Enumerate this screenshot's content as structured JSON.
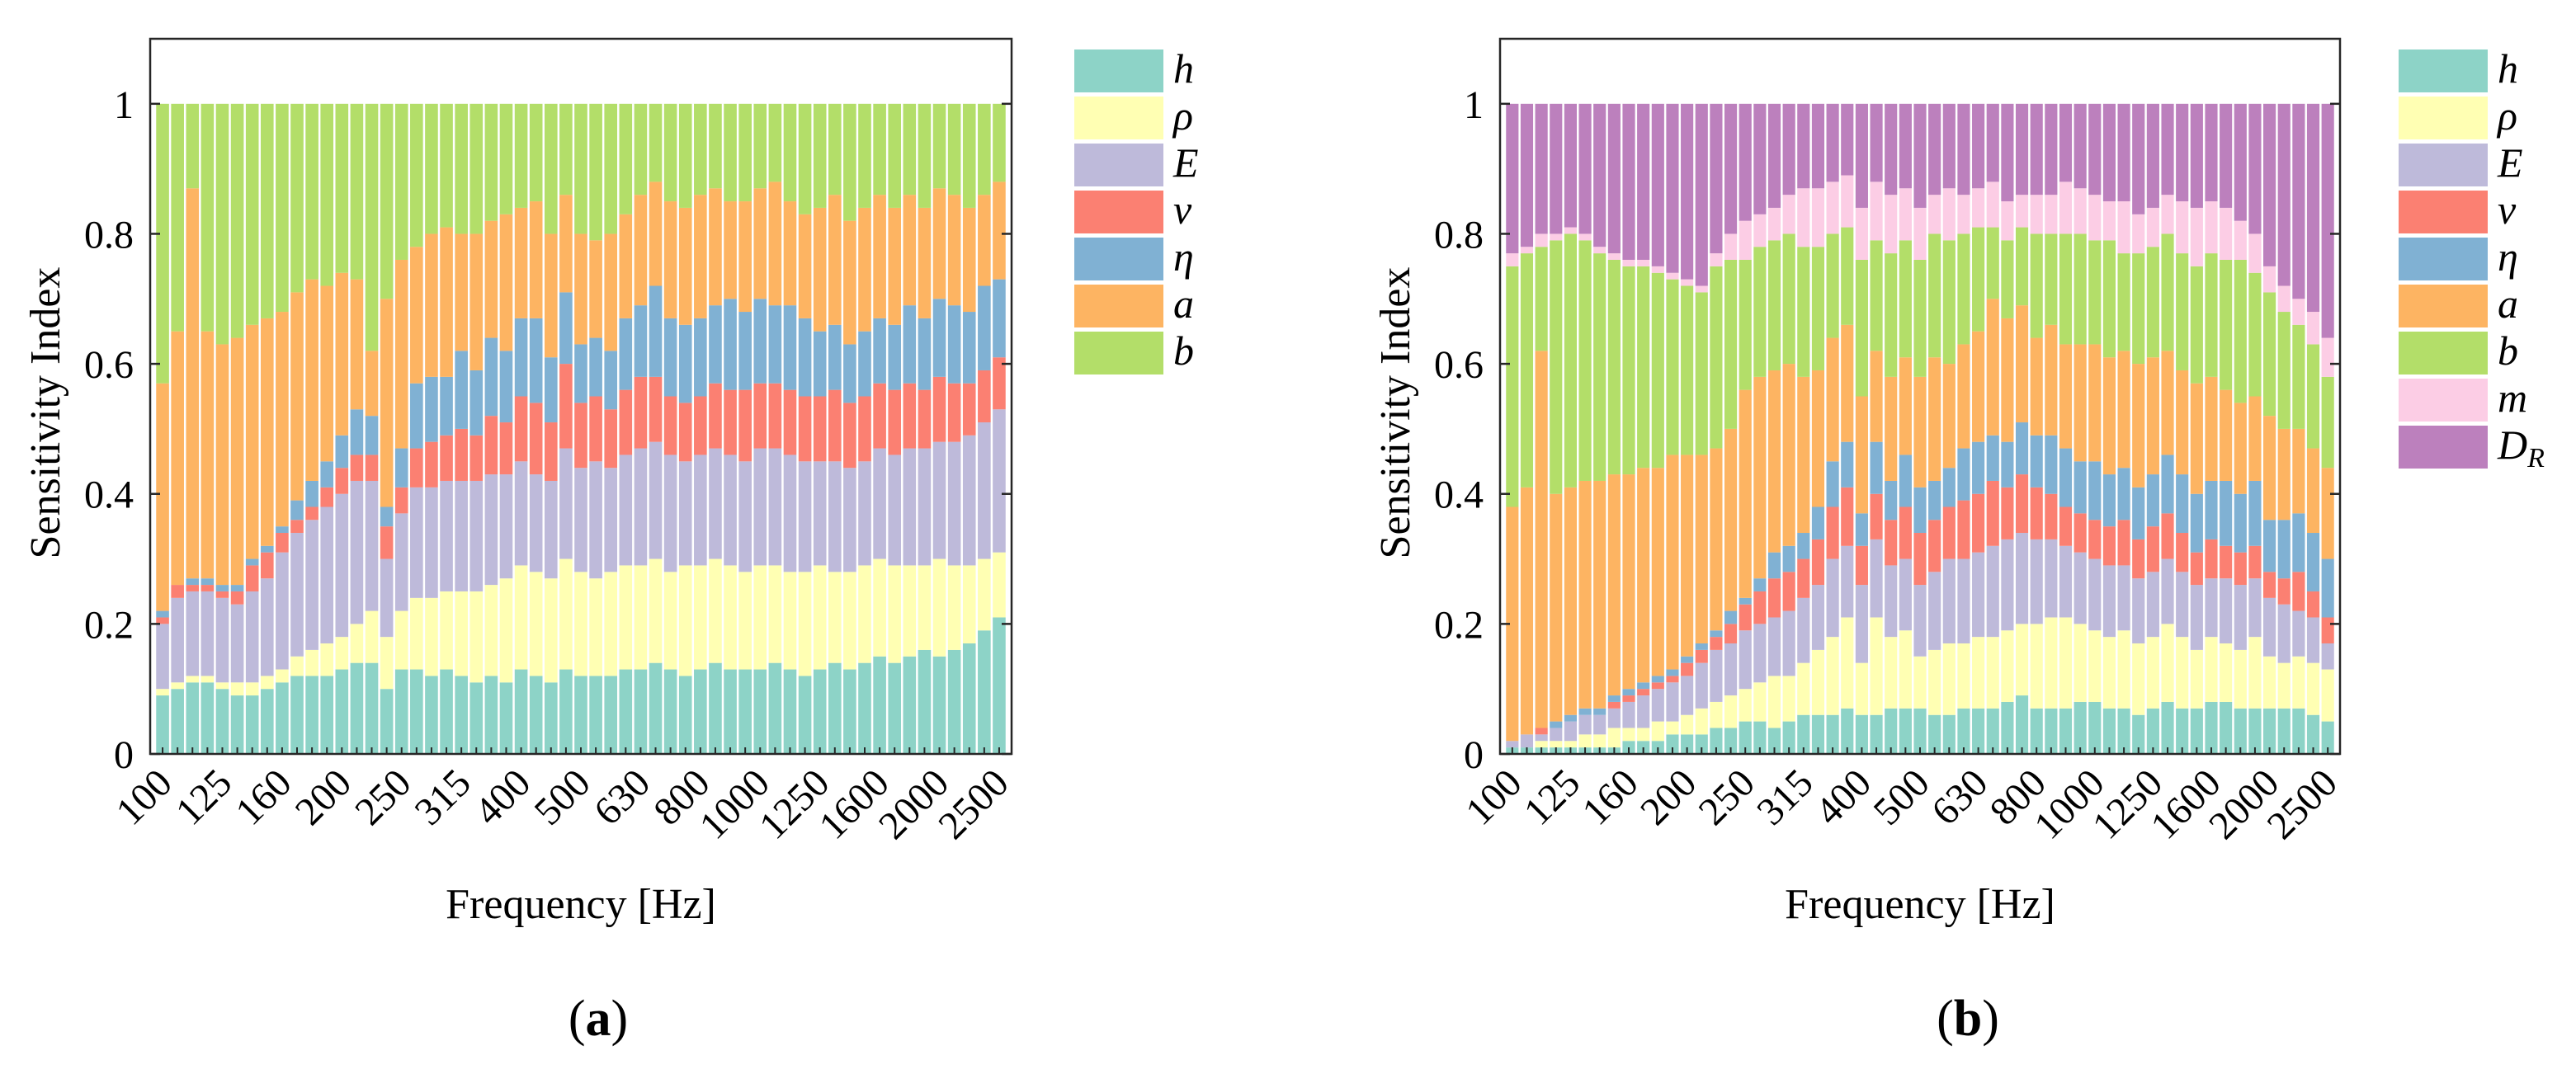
{
  "figure": {
    "captions": [
      "(a)",
      "(b)"
    ]
  },
  "chart_data": [
    {
      "id": "a",
      "type": "bar",
      "stacked": true,
      "caption_letter": "a",
      "xlabel": "Frequency [Hz]",
      "ylabel": "Sensitivity Index",
      "ylim": [
        0,
        1.1
      ],
      "yticks": [
        0,
        0.2,
        0.4,
        0.6,
        0.8,
        1
      ],
      "xtick_labels": [
        "100",
        "125",
        "160",
        "200",
        "250",
        "315",
        "400",
        "500",
        "630",
        "800",
        "1000",
        "1250",
        "1600",
        "2000",
        "2500"
      ],
      "xtick_every": 4,
      "n_bars": 57,
      "legend": [
        "h",
        "ρ",
        "E",
        "ν",
        "η",
        "a",
        "b"
      ],
      "colors": {
        "h": "#8dd3c7",
        "ρ": "#ffffb3",
        "E": "#bebada",
        "ν": "#fb8072",
        "η": "#80b1d3",
        "a": "#fdb462",
        "b": "#b3de69"
      },
      "boundaries": {
        "h": [
          0.09,
          0.1,
          0.11,
          0.11,
          0.1,
          0.09,
          0.09,
          0.1,
          0.11,
          0.12,
          0.12,
          0.12,
          0.13,
          0.14,
          0.14,
          0.1,
          0.13,
          0.13,
          0.12,
          0.13,
          0.12,
          0.11,
          0.12,
          0.11,
          0.13,
          0.12,
          0.11,
          0.13,
          0.12,
          0.12,
          0.12,
          0.13,
          0.13,
          0.14,
          0.13,
          0.12,
          0.13,
          0.14,
          0.13,
          0.13,
          0.13,
          0.14,
          0.13,
          0.12,
          0.13,
          0.14,
          0.13,
          0.14,
          0.15,
          0.14,
          0.15,
          0.16,
          0.15,
          0.16,
          0.17,
          0.19,
          0.21
        ],
        "ρ": [
          0.1,
          0.11,
          0.12,
          0.12,
          0.11,
          0.11,
          0.11,
          0.12,
          0.13,
          0.15,
          0.16,
          0.17,
          0.18,
          0.2,
          0.22,
          0.18,
          0.22,
          0.24,
          0.24,
          0.25,
          0.25,
          0.25,
          0.26,
          0.27,
          0.29,
          0.28,
          0.27,
          0.3,
          0.28,
          0.27,
          0.28,
          0.29,
          0.29,
          0.3,
          0.28,
          0.29,
          0.29,
          0.3,
          0.29,
          0.28,
          0.29,
          0.29,
          0.28,
          0.28,
          0.29,
          0.28,
          0.28,
          0.29,
          0.3,
          0.29,
          0.29,
          0.29,
          0.3,
          0.29,
          0.29,
          0.3,
          0.31
        ],
        "E": [
          0.2,
          0.24,
          0.25,
          0.25,
          0.24,
          0.23,
          0.25,
          0.27,
          0.31,
          0.34,
          0.36,
          0.38,
          0.4,
          0.42,
          0.42,
          0.3,
          0.37,
          0.41,
          0.41,
          0.42,
          0.42,
          0.42,
          0.43,
          0.43,
          0.45,
          0.43,
          0.42,
          0.47,
          0.44,
          0.45,
          0.44,
          0.46,
          0.47,
          0.48,
          0.46,
          0.45,
          0.46,
          0.47,
          0.46,
          0.45,
          0.47,
          0.47,
          0.46,
          0.45,
          0.45,
          0.45,
          0.44,
          0.45,
          0.47,
          0.46,
          0.47,
          0.47,
          0.48,
          0.48,
          0.49,
          0.51,
          0.53
        ],
        "ν": [
          0.21,
          0.26,
          0.26,
          0.26,
          0.25,
          0.25,
          0.29,
          0.31,
          0.34,
          0.36,
          0.38,
          0.41,
          0.44,
          0.46,
          0.46,
          0.35,
          0.41,
          0.47,
          0.48,
          0.49,
          0.5,
          0.49,
          0.52,
          0.51,
          0.55,
          0.54,
          0.51,
          0.6,
          0.54,
          0.55,
          0.53,
          0.56,
          0.58,
          0.58,
          0.55,
          0.54,
          0.55,
          0.57,
          0.56,
          0.56,
          0.57,
          0.57,
          0.56,
          0.55,
          0.55,
          0.56,
          0.54,
          0.55,
          0.57,
          0.56,
          0.57,
          0.56,
          0.58,
          0.57,
          0.57,
          0.59,
          0.61
        ],
        "η": [
          0.22,
          0.26,
          0.27,
          0.27,
          0.26,
          0.26,
          0.3,
          0.32,
          0.35,
          0.39,
          0.42,
          0.45,
          0.49,
          0.53,
          0.52,
          0.38,
          0.47,
          0.57,
          0.58,
          0.58,
          0.62,
          0.59,
          0.64,
          0.62,
          0.67,
          0.67,
          0.61,
          0.71,
          0.63,
          0.64,
          0.62,
          0.67,
          0.69,
          0.72,
          0.67,
          0.66,
          0.67,
          0.69,
          0.7,
          0.68,
          0.7,
          0.69,
          0.69,
          0.67,
          0.65,
          0.66,
          0.63,
          0.65,
          0.67,
          0.66,
          0.69,
          0.67,
          0.7,
          0.69,
          0.68,
          0.72,
          0.73
        ],
        "a": [
          0.57,
          0.65,
          0.87,
          0.65,
          0.63,
          0.64,
          0.66,
          0.67,
          0.68,
          0.71,
          0.73,
          0.72,
          0.74,
          0.73,
          0.62,
          0.7,
          0.76,
          0.78,
          0.8,
          0.81,
          0.8,
          0.8,
          0.82,
          0.83,
          0.84,
          0.85,
          0.8,
          0.86,
          0.8,
          0.79,
          0.8,
          0.83,
          0.86,
          0.88,
          0.85,
          0.84,
          0.86,
          0.87,
          0.85,
          0.85,
          0.87,
          0.88,
          0.85,
          0.83,
          0.84,
          0.86,
          0.82,
          0.84,
          0.86,
          0.84,
          0.86,
          0.84,
          0.87,
          0.86,
          0.84,
          0.86,
          0.88
        ],
        "b": [
          1,
          1,
          1,
          1,
          1,
          1,
          1,
          1,
          1,
          1,
          1,
          1,
          1,
          1,
          1,
          1,
          1,
          1,
          1,
          1,
          1,
          1,
          1,
          1,
          1,
          1,
          1,
          1,
          1,
          1,
          1,
          1,
          1,
          1,
          1,
          1,
          1,
          1,
          1,
          1,
          1,
          1,
          1,
          1,
          1,
          1,
          1,
          1,
          1,
          1,
          1,
          1,
          1,
          1,
          1,
          1,
          1
        ]
      }
    },
    {
      "id": "b",
      "type": "bar",
      "stacked": true,
      "caption_letter": "b",
      "xlabel": "Frequency [Hz]",
      "ylabel": "Sensitivity Index",
      "ylim": [
        0,
        1.1
      ],
      "yticks": [
        0,
        0.2,
        0.4,
        0.6,
        0.8,
        1
      ],
      "xtick_labels": [
        "100",
        "125",
        "160",
        "200",
        "250",
        "315",
        "400",
        "500",
        "630",
        "800",
        "1000",
        "1250",
        "1600",
        "2000",
        "2500"
      ],
      "xtick_every": 4,
      "n_bars": 57,
      "legend": [
        "h",
        "ρ",
        "E",
        "ν",
        "η",
        "a",
        "b",
        "m",
        "D_R"
      ],
      "colors": {
        "h": "#8dd3c7",
        "ρ": "#ffffb3",
        "E": "#bebada",
        "ν": "#fb8072",
        "η": "#80b1d3",
        "a": "#fdb462",
        "b": "#b3de69",
        "m": "#fccde5",
        "D_R": "#bc80bd"
      },
      "boundaries": {
        "h": [
          0.01,
          0.01,
          0.01,
          0.01,
          0.01,
          0.01,
          0.01,
          0.01,
          0.02,
          0.02,
          0.02,
          0.03,
          0.03,
          0.03,
          0.04,
          0.04,
          0.05,
          0.05,
          0.04,
          0.05,
          0.06,
          0.06,
          0.06,
          0.07,
          0.06,
          0.06,
          0.07,
          0.07,
          0.07,
          0.06,
          0.06,
          0.07,
          0.07,
          0.07,
          0.08,
          0.09,
          0.07,
          0.07,
          0.07,
          0.08,
          0.08,
          0.07,
          0.07,
          0.06,
          0.07,
          0.08,
          0.07,
          0.07,
          0.08,
          0.08,
          0.07,
          0.07,
          0.07,
          0.07,
          0.07,
          0.06,
          0.05
        ],
        "ρ": [
          0.01,
          0.01,
          0.02,
          0.02,
          0.02,
          0.03,
          0.03,
          0.04,
          0.04,
          0.04,
          0.05,
          0.05,
          0.06,
          0.07,
          0.08,
          0.09,
          0.1,
          0.11,
          0.12,
          0.12,
          0.14,
          0.16,
          0.18,
          0.21,
          0.14,
          0.21,
          0.18,
          0.19,
          0.15,
          0.16,
          0.17,
          0.17,
          0.18,
          0.18,
          0.19,
          0.2,
          0.2,
          0.21,
          0.21,
          0.2,
          0.19,
          0.18,
          0.19,
          0.17,
          0.18,
          0.2,
          0.18,
          0.16,
          0.18,
          0.17,
          0.16,
          0.18,
          0.15,
          0.14,
          0.15,
          0.14,
          0.13
        ],
        "E": [
          0.02,
          0.03,
          0.03,
          0.04,
          0.05,
          0.06,
          0.06,
          0.07,
          0.08,
          0.09,
          0.1,
          0.11,
          0.12,
          0.14,
          0.16,
          0.17,
          0.19,
          0.2,
          0.21,
          0.22,
          0.24,
          0.26,
          0.3,
          0.32,
          0.26,
          0.33,
          0.29,
          0.3,
          0.26,
          0.28,
          0.3,
          0.3,
          0.31,
          0.32,
          0.33,
          0.34,
          0.33,
          0.33,
          0.32,
          0.31,
          0.3,
          0.29,
          0.29,
          0.27,
          0.28,
          0.3,
          0.28,
          0.26,
          0.27,
          0.27,
          0.26,
          0.27,
          0.24,
          0.23,
          0.22,
          0.21,
          0.17
        ],
        "ν": [
          0.02,
          0.03,
          0.04,
          0.04,
          0.05,
          0.06,
          0.06,
          0.08,
          0.09,
          0.1,
          0.11,
          0.12,
          0.14,
          0.16,
          0.18,
          0.2,
          0.23,
          0.25,
          0.27,
          0.28,
          0.3,
          0.33,
          0.38,
          0.41,
          0.32,
          0.4,
          0.36,
          0.38,
          0.34,
          0.36,
          0.38,
          0.39,
          0.4,
          0.42,
          0.41,
          0.43,
          0.41,
          0.4,
          0.38,
          0.37,
          0.36,
          0.35,
          0.36,
          0.33,
          0.35,
          0.37,
          0.34,
          0.31,
          0.33,
          0.32,
          0.31,
          0.32,
          0.28,
          0.27,
          0.28,
          0.25,
          0.21
        ],
        "η": [
          0.02,
          0.03,
          0.04,
          0.05,
          0.06,
          0.07,
          0.07,
          0.09,
          0.1,
          0.11,
          0.12,
          0.13,
          0.15,
          0.17,
          0.19,
          0.22,
          0.24,
          0.27,
          0.31,
          0.32,
          0.34,
          0.38,
          0.45,
          0.48,
          0.37,
          0.48,
          0.42,
          0.46,
          0.41,
          0.42,
          0.44,
          0.47,
          0.48,
          0.49,
          0.48,
          0.51,
          0.49,
          0.49,
          0.47,
          0.45,
          0.45,
          0.43,
          0.44,
          0.41,
          0.43,
          0.46,
          0.43,
          0.4,
          0.42,
          0.42,
          0.4,
          0.42,
          0.36,
          0.36,
          0.37,
          0.34,
          0.3
        ],
        "a": [
          0.38,
          0.41,
          0.62,
          0.4,
          0.41,
          0.42,
          0.42,
          0.43,
          0.43,
          0.44,
          0.44,
          0.46,
          0.46,
          0.46,
          0.47,
          0.5,
          0.56,
          0.58,
          0.59,
          0.6,
          0.58,
          0.59,
          0.64,
          0.66,
          0.55,
          0.62,
          0.58,
          0.61,
          0.58,
          0.61,
          0.6,
          0.63,
          0.65,
          0.7,
          0.67,
          0.69,
          0.64,
          0.66,
          0.63,
          0.63,
          0.63,
          0.61,
          0.62,
          0.6,
          0.61,
          0.62,
          0.59,
          0.57,
          0.58,
          0.56,
          0.54,
          0.55,
          0.52,
          0.5,
          0.5,
          0.47,
          0.44
        ],
        "b": [
          0.75,
          0.77,
          0.78,
          0.79,
          0.8,
          0.79,
          0.77,
          0.76,
          0.75,
          0.75,
          0.74,
          0.73,
          0.72,
          0.71,
          0.75,
          0.76,
          0.76,
          0.78,
          0.79,
          0.8,
          0.78,
          0.78,
          0.8,
          0.81,
          0.76,
          0.79,
          0.77,
          0.79,
          0.76,
          0.8,
          0.79,
          0.8,
          0.81,
          0.81,
          0.79,
          0.81,
          0.8,
          0.8,
          0.8,
          0.8,
          0.79,
          0.79,
          0.77,
          0.77,
          0.78,
          0.8,
          0.77,
          0.75,
          0.77,
          0.76,
          0.76,
          0.74,
          0.71,
          0.68,
          0.66,
          0.63,
          0.58
        ],
        "m": [
          0.77,
          0.78,
          0.8,
          0.8,
          0.81,
          0.8,
          0.78,
          0.77,
          0.76,
          0.76,
          0.75,
          0.74,
          0.73,
          0.72,
          0.77,
          0.8,
          0.82,
          0.83,
          0.84,
          0.86,
          0.87,
          0.87,
          0.88,
          0.89,
          0.84,
          0.88,
          0.86,
          0.87,
          0.84,
          0.86,
          0.87,
          0.86,
          0.87,
          0.88,
          0.85,
          0.86,
          0.86,
          0.86,
          0.88,
          0.87,
          0.86,
          0.85,
          0.85,
          0.83,
          0.84,
          0.86,
          0.85,
          0.84,
          0.85,
          0.84,
          0.82,
          0.8,
          0.75,
          0.72,
          0.7,
          0.68,
          0.64
        ],
        "D_R": [
          1,
          1,
          1,
          1,
          1,
          1,
          1,
          1,
          1,
          1,
          1,
          1,
          1,
          1,
          1,
          1,
          1,
          1,
          1,
          1,
          1,
          1,
          1,
          1,
          1,
          1,
          1,
          1,
          1,
          1,
          1,
          1,
          1,
          1,
          1,
          1,
          1,
          1,
          1,
          1,
          1,
          1,
          1,
          1,
          1,
          1,
          1,
          1,
          1,
          1,
          1,
          1,
          1,
          1,
          1,
          1,
          1
        ]
      }
    }
  ]
}
